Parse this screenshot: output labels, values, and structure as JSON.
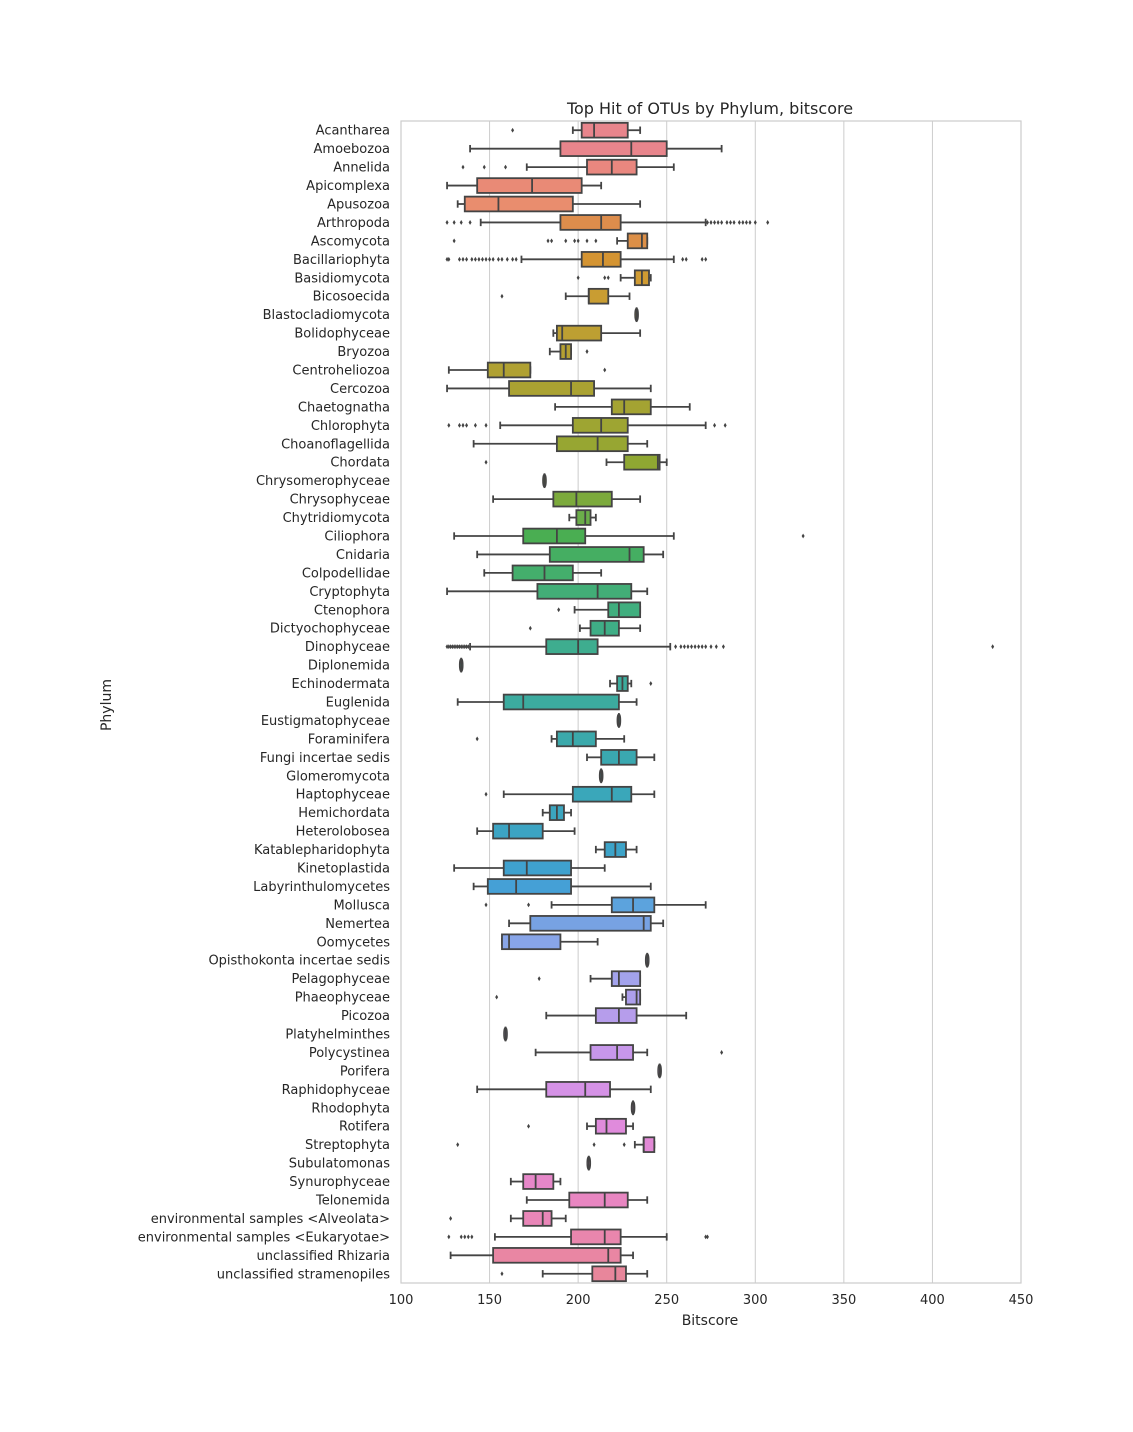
{
  "chart_data": {
    "type": "box",
    "title": "Top Hit of OTUs by Phylum, bitscore",
    "xlabel": "Bitscore",
    "ylabel": "Phylum",
    "xlim": [
      100,
      450
    ],
    "xticks": [
      100,
      150,
      200,
      250,
      300,
      350,
      400,
      450
    ],
    "grid": "vertical",
    "colors": {
      "box_edge": "#444444",
      "grid": "#cccccc",
      "frame": "#cccccc"
    },
    "rows": [
      {
        "label": "Acantharea",
        "color": "#e8858c",
        "whislo": 197,
        "q1": 202,
        "med": 209,
        "q3": 228,
        "whishi": 235,
        "fliers": [
          163
        ]
      },
      {
        "label": "Amoebozoa",
        "color": "#e8858c",
        "whislo": 139,
        "q1": 190,
        "med": 230,
        "q3": 250,
        "whishi": 281,
        "fliers": []
      },
      {
        "label": "Annelida",
        "color": "#e9877f",
        "whislo": 171,
        "q1": 205,
        "med": 219,
        "q3": 233,
        "whishi": 254,
        "fliers": [
          135,
          147,
          159
        ]
      },
      {
        "label": "Apicomplexa",
        "color": "#e98a76",
        "whislo": 126,
        "q1": 143,
        "med": 174,
        "q3": 202,
        "whishi": 213,
        "fliers": []
      },
      {
        "label": "Apusozoa",
        "color": "#e98d6e",
        "whislo": 132,
        "q1": 136,
        "med": 155,
        "q3": 197,
        "whishi": 235,
        "fliers": []
      },
      {
        "label": "Arthropoda",
        "color": "#dd8d4c",
        "whislo": 145,
        "q1": 190,
        "med": 213,
        "q3": 224,
        "whishi": 272,
        "fliers": [
          126,
          130,
          134,
          139,
          273,
          275,
          277,
          279,
          281,
          284,
          286,
          288,
          291,
          293,
          295,
          297,
          300,
          307
        ]
      },
      {
        "label": "Ascomycota",
        "color": "#dc8f47",
        "whislo": 222,
        "q1": 228,
        "med": 236,
        "q3": 239,
        "whishi": 239,
        "fliers": [
          130,
          183,
          185,
          193,
          198,
          200,
          205,
          210
        ]
      },
      {
        "label": "Bacillariophyta",
        "color": "#d49432",
        "whislo": 168,
        "q1": 202,
        "med": 214,
        "q3": 224,
        "whishi": 254,
        "fliers": [
          126,
          127,
          133,
          135,
          137,
          140,
          142,
          144,
          146,
          148,
          150,
          152,
          155,
          157,
          160,
          163,
          165,
          259,
          261,
          270,
          272
        ]
      },
      {
        "label": "Basidiomycota",
        "color": "#d09b32",
        "whislo": 224,
        "q1": 232,
        "med": 236,
        "q3": 240,
        "whishi": 241,
        "fliers": [
          200,
          215,
          217
        ]
      },
      {
        "label": "Bicosoecida",
        "color": "#c99d32",
        "whislo": 193,
        "q1": 206,
        "med": 206,
        "q3": 217,
        "whishi": 229,
        "fliers": [
          157
        ]
      },
      {
        "label": "Blastocladiomycota",
        "color": "#c39f32",
        "whislo": 233,
        "q1": 233,
        "med": 233,
        "q3": 233,
        "whishi": 233,
        "fliers": []
      },
      {
        "label": "Bolidophyceae",
        "color": "#bd9f32",
        "whislo": 186,
        "q1": 188,
        "med": 191,
        "q3": 213,
        "whishi": 235,
        "fliers": []
      },
      {
        "label": "Bryozoa",
        "color": "#b5a032",
        "whislo": 184,
        "q1": 190,
        "med": 193,
        "q3": 196,
        "whishi": 196,
        "fliers": [
          205
        ]
      },
      {
        "label": "Centroheliozoa",
        "color": "#b0a132",
        "whislo": 127,
        "q1": 149,
        "med": 158,
        "q3": 173,
        "whishi": 173,
        "fliers": [
          215
        ]
      },
      {
        "label": "Cercozoa",
        "color": "#aaa232",
        "whislo": 126,
        "q1": 161,
        "med": 196,
        "q3": 209,
        "whishi": 241,
        "fliers": []
      },
      {
        "label": "Chaetognatha",
        "color": "#a4a332",
        "whislo": 187,
        "q1": 219,
        "med": 226,
        "q3": 241,
        "whishi": 263,
        "fliers": []
      },
      {
        "label": "Chlorophyta",
        "color": "#9ea532",
        "whislo": 156,
        "q1": 197,
        "med": 213,
        "q3": 228,
        "whishi": 272,
        "fliers": [
          127,
          133,
          135,
          137,
          142,
          148,
          277,
          283
        ]
      },
      {
        "label": "Choanoflagellida",
        "color": "#97a632",
        "whislo": 141,
        "q1": 188,
        "med": 211,
        "q3": 228,
        "whishi": 239,
        "fliers": []
      },
      {
        "label": "Chordata",
        "color": "#8fa732",
        "whislo": 216,
        "q1": 226,
        "med": 245,
        "q3": 246,
        "whishi": 250,
        "fliers": [
          148
        ]
      },
      {
        "label": "Chrysomerophyceae",
        "color": "#86a832",
        "whislo": 181,
        "q1": 181,
        "med": 181,
        "q3": 181,
        "whishi": 181,
        "fliers": []
      },
      {
        "label": "Chrysophyceae",
        "color": "#7caa3c",
        "whislo": 152,
        "q1": 186,
        "med": 199,
        "q3": 219,
        "whishi": 235,
        "fliers": []
      },
      {
        "label": "Chytridiomycota",
        "color": "#6bad4a",
        "whislo": 195,
        "q1": 199,
        "med": 204,
        "q3": 207,
        "whishi": 210,
        "fliers": []
      },
      {
        "label": "Ciliophora",
        "color": "#4aae52",
        "whislo": 130,
        "q1": 169,
        "med": 188,
        "q3": 204,
        "whishi": 254,
        "fliers": [
          327
        ]
      },
      {
        "label": "Cnidaria",
        "color": "#45ae62",
        "whislo": 143,
        "q1": 184,
        "med": 229,
        "q3": 237,
        "whishi": 248,
        "fliers": []
      },
      {
        "label": "Colpodellidae",
        "color": "#44ae6c",
        "whislo": 147,
        "q1": 163,
        "med": 181,
        "q3": 197,
        "whishi": 213,
        "fliers": []
      },
      {
        "label": "Cryptophyta",
        "color": "#42ae77",
        "whislo": 126,
        "q1": 177,
        "med": 211,
        "q3": 230,
        "whishi": 239,
        "fliers": []
      },
      {
        "label": "Ctenophora",
        "color": "#40ae7e",
        "whislo": 198,
        "q1": 217,
        "med": 223,
        "q3": 235,
        "whishi": 235,
        "fliers": [
          189
        ]
      },
      {
        "label": "Dictyochophyceae",
        "color": "#3fae86",
        "whislo": 201,
        "q1": 207,
        "med": 215,
        "q3": 223,
        "whishi": 235,
        "fliers": [
          173
        ]
      },
      {
        "label": "Dinophyceae",
        "color": "#3ead8f",
        "whislo": 139,
        "q1": 182,
        "med": 200,
        "q3": 211,
        "whishi": 252,
        "fliers": [
          126,
          127,
          128,
          129,
          130,
          131,
          132,
          133,
          134,
          135,
          136,
          137,
          138,
          255,
          258,
          260,
          262,
          264,
          266,
          268,
          270,
          272,
          275,
          278,
          282,
          434
        ]
      },
      {
        "label": "Diplonemida",
        "color": "#3dad96",
        "whislo": 134,
        "q1": 134,
        "med": 134,
        "q3": 134,
        "whishi": 134,
        "fliers": []
      },
      {
        "label": "Echinodermata",
        "color": "#3cac9d",
        "whislo": 218,
        "q1": 222,
        "med": 225,
        "q3": 228,
        "whishi": 230,
        "fliers": [
          241
        ]
      },
      {
        "label": "Euglenida",
        "color": "#3cab9f",
        "whislo": 132,
        "q1": 158,
        "med": 169,
        "q3": 223,
        "whishi": 233,
        "fliers": []
      },
      {
        "label": "Eustigmatophyceae",
        "color": "#3baaa6",
        "whislo": 223,
        "q1": 223,
        "med": 223,
        "q3": 223,
        "whishi": 223,
        "fliers": []
      },
      {
        "label": "Foraminifera",
        "color": "#3ba9ab",
        "whislo": 185,
        "q1": 188,
        "med": 197,
        "q3": 210,
        "whishi": 226,
        "fliers": [
          143
        ]
      },
      {
        "label": "Fungi incertae sedis",
        "color": "#3aa8b0",
        "whislo": 205,
        "q1": 213,
        "med": 223,
        "q3": 233,
        "whishi": 243,
        "fliers": []
      },
      {
        "label": "Glomeromycota",
        "color": "#3aa8b4",
        "whislo": 213,
        "q1": 213,
        "med": 213,
        "q3": 213,
        "whishi": 213,
        "fliers": []
      },
      {
        "label": "Haptophyceae",
        "color": "#3aa7ba",
        "whislo": 158,
        "q1": 197,
        "med": 219,
        "q3": 230,
        "whishi": 243,
        "fliers": [
          148
        ]
      },
      {
        "label": "Hemichordata",
        "color": "#3ba5bf",
        "whislo": 180,
        "q1": 184,
        "med": 188,
        "q3": 192,
        "whishi": 196,
        "fliers": []
      },
      {
        "label": "Heterolobosea",
        "color": "#3ca4c3",
        "whislo": 143,
        "q1": 152,
        "med": 161,
        "q3": 180,
        "whishi": 198,
        "fliers": []
      },
      {
        "label": "Katablepharidophyta",
        "color": "#3da3c8",
        "whislo": 210,
        "q1": 215,
        "med": 221,
        "q3": 227,
        "whishi": 233,
        "fliers": []
      },
      {
        "label": "Kinetoplastida",
        "color": "#3fa1ce",
        "whislo": 130,
        "q1": 158,
        "med": 171,
        "q3": 196,
        "whishi": 215,
        "fliers": []
      },
      {
        "label": "Labyrinthulomycetes",
        "color": "#45a0d6",
        "whislo": 141,
        "q1": 149,
        "med": 165,
        "q3": 196,
        "whishi": 241,
        "fliers": []
      },
      {
        "label": "Mollusca",
        "color": "#5ca3dd",
        "whislo": 185,
        "q1": 219,
        "med": 231,
        "q3": 243,
        "whishi": 272,
        "fliers": [
          148,
          172
        ]
      },
      {
        "label": "Nemertea",
        "color": "#77a2e3",
        "whislo": 161,
        "q1": 173,
        "med": 237,
        "q3": 241,
        "whishi": 248,
        "fliers": []
      },
      {
        "label": "Oomycetes",
        "color": "#88a5e8",
        "whislo": 157,
        "q1": 157,
        "med": 161,
        "q3": 190,
        "whishi": 211,
        "fliers": []
      },
      {
        "label": "Opisthokonta incertae sedis",
        "color": "#96a3ea",
        "whislo": 239,
        "q1": 239,
        "med": 239,
        "q3": 239,
        "whishi": 239,
        "fliers": []
      },
      {
        "label": "Pelagophyceae",
        "color": "#a3a3ec",
        "whislo": 207,
        "q1": 219,
        "med": 223,
        "q3": 235,
        "whishi": 235,
        "fliers": [
          178
        ]
      },
      {
        "label": "Phaeophyceae",
        "color": "#ad9fec",
        "whislo": 225,
        "q1": 227,
        "med": 233,
        "q3": 235,
        "whishi": 235,
        "fliers": [
          154
        ]
      },
      {
        "label": "Picozoa",
        "color": "#b69deb",
        "whislo": 182,
        "q1": 210,
        "med": 223,
        "q3": 233,
        "whishi": 261,
        "fliers": []
      },
      {
        "label": "Platyhelminthes",
        "color": "#bf9aea",
        "whislo": 159,
        "q1": 159,
        "med": 159,
        "q3": 159,
        "whishi": 159,
        "fliers": []
      },
      {
        "label": "Polycystinea",
        "color": "#c797ea",
        "whislo": 176,
        "q1": 207,
        "med": 222,
        "q3": 231,
        "whishi": 239,
        "fliers": [
          281
        ]
      },
      {
        "label": "Porifera",
        "color": "#ce94e9",
        "whislo": 246,
        "q1": 246,
        "med": 246,
        "q3": 246,
        "whishi": 246,
        "fliers": []
      },
      {
        "label": "Raphidophyceae",
        "color": "#d592e6",
        "whislo": 143,
        "q1": 182,
        "med": 204,
        "q3": 218,
        "whishi": 241,
        "fliers": []
      },
      {
        "label": "Rhodophyta",
        "color": "#dc90e3",
        "whislo": 231,
        "q1": 231,
        "med": 231,
        "q3": 231,
        "whishi": 231,
        "fliers": []
      },
      {
        "label": "Rotifera",
        "color": "#e08bdc",
        "whislo": 205,
        "q1": 210,
        "med": 216,
        "q3": 227,
        "whishi": 231,
        "fliers": [
          172
        ]
      },
      {
        "label": "Streptophyta",
        "color": "#e289d6",
        "whislo": 232,
        "q1": 237,
        "med": 237,
        "q3": 243,
        "whishi": 243,
        "fliers": [
          132,
          209,
          226
        ]
      },
      {
        "label": "Subulatomonas",
        "color": "#e488cf",
        "whislo": 206,
        "q1": 206,
        "med": 206,
        "q3": 206,
        "whishi": 206,
        "fliers": []
      },
      {
        "label": "Synurophyceae",
        "color": "#e687c9",
        "whislo": 162,
        "q1": 169,
        "med": 176,
        "q3": 186,
        "whishi": 190,
        "fliers": []
      },
      {
        "label": "Telonemida",
        "color": "#e886c1",
        "whislo": 171,
        "q1": 195,
        "med": 215,
        "q3": 228,
        "whishi": 239,
        "fliers": []
      },
      {
        "label": "environmental samples <Alveolata>",
        "color": "#e986b8",
        "whislo": 162,
        "q1": 169,
        "med": 180,
        "q3": 185,
        "whishi": 193,
        "fliers": [
          128
        ]
      },
      {
        "label": "environmental samples <Eukaryotae>",
        "color": "#e986ad",
        "whislo": 153,
        "q1": 196,
        "med": 215,
        "q3": 224,
        "whishi": 250,
        "fliers": [
          127,
          134,
          136,
          138,
          140,
          272,
          273
        ]
      },
      {
        "label": "unclassified Rhizaria",
        "color": "#e986a3",
        "whislo": 128,
        "q1": 152,
        "med": 217,
        "q3": 224,
        "whishi": 231,
        "fliers": []
      },
      {
        "label": "unclassified stramenopiles",
        "color": "#e8869b",
        "whislo": 180,
        "q1": 208,
        "med": 221,
        "q3": 227,
        "whishi": 239,
        "fliers": [
          157
        ]
      }
    ]
  }
}
